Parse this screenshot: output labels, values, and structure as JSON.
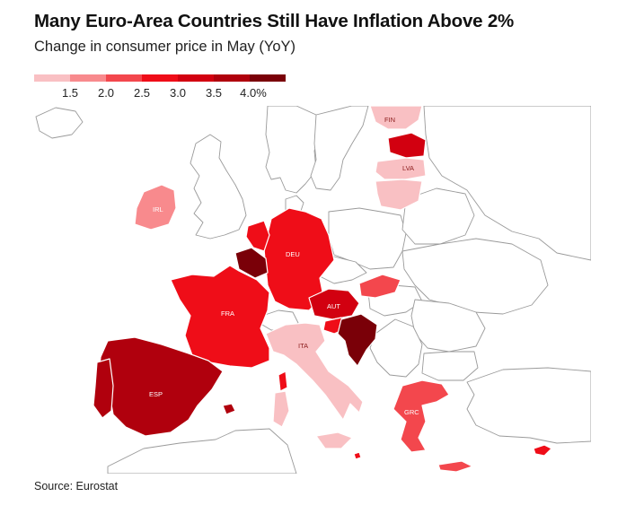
{
  "title": "Many Euro-Area Countries Still Have Inflation Above 2%",
  "subtitle": "Change in consumer price in May (YoY)",
  "legend": {
    "ticks": [
      "1.5",
      "2.0",
      "2.5",
      "3.0",
      "3.5",
      "4.0%"
    ],
    "colors": [
      "#f9c0c3",
      "#f88a8d",
      "#f3474d",
      "#ef0d18",
      "#d20010",
      "#b0000d",
      "#7a0008"
    ]
  },
  "labels": {
    "fin": "FIN",
    "lva": "LVA",
    "irl": "IRL",
    "deu": "DEU",
    "fra": "FRA",
    "aut": "AUT",
    "ita": "ITA",
    "esp": "ESP",
    "grc": "GRC"
  },
  "source": "Source: Eurostat"
}
